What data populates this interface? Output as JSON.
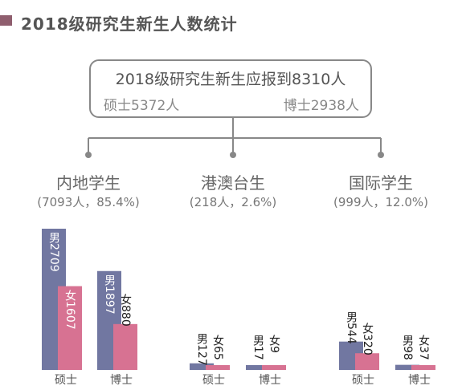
{
  "title": "2018级研究生新生人数统计",
  "summary": {
    "total": "2018级研究生新生应报到8310人",
    "master": "硕士5372人",
    "phd": "博士2938人"
  },
  "colors": {
    "male": "#7177a1",
    "female": "#d77292",
    "line": "#888888",
    "accent": "#8f5e6e"
  },
  "chart_data": {
    "type": "bar",
    "title": "2018级研究生新生人数统计",
    "groups": [
      {
        "name": "内地学生",
        "subtitle": "(7093人，85.4%)",
        "categories": [
          "硕士",
          "博士"
        ],
        "series": [
          {
            "name": "男",
            "values": [
              2709,
              1897
            ],
            "labels": [
              "男2709",
              "男1897"
            ]
          },
          {
            "name": "女",
            "values": [
              1607,
              880
            ],
            "labels": [
              "女1607",
              "女880"
            ]
          }
        ]
      },
      {
        "name": "港澳台生",
        "subtitle": "(218人，2.6%)",
        "categories": [
          "硕士",
          "博士"
        ],
        "series": [
          {
            "name": "男",
            "values": [
              127,
              17
            ],
            "labels": [
              "男127",
              "男17"
            ]
          },
          {
            "name": "女",
            "values": [
              65,
              9
            ],
            "labels": [
              "女65",
              "女9"
            ]
          }
        ]
      },
      {
        "name": "国际学生",
        "subtitle": "(999人，12.0%)",
        "categories": [
          "硕士",
          "博士"
        ],
        "series": [
          {
            "name": "男",
            "values": [
              544,
              98
            ],
            "labels": [
              "男544",
              "男98"
            ]
          },
          {
            "name": "女",
            "values": [
              320,
              37
            ],
            "labels": [
              "女320",
              "女37"
            ]
          }
        ]
      }
    ]
  }
}
